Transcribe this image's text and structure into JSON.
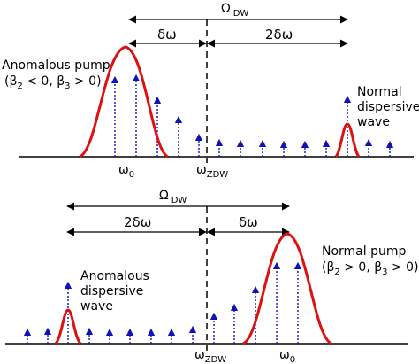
{
  "colors": {
    "spectrum": "#dd1111",
    "comb": "#1111bb",
    "axis": "#000000"
  },
  "top_panel": {
    "omega_dw": {
      "symbol": "Ω",
      "sub": "DW"
    },
    "left_gap": "δω",
    "right_gap": "2δω",
    "pump_label": [
      "Anomalous pump",
      "(β",
      "2",
      " < 0, β",
      "3",
      " > 0)"
    ],
    "wave_label": [
      "Normal",
      "dispersive",
      "wave"
    ],
    "tick_pump": {
      "symbol": "ω",
      "sub": "0"
    },
    "tick_zdw": {
      "symbol": "ω",
      "sub": "ZDW"
    }
  },
  "bottom_panel": {
    "omega_dw": {
      "symbol": "Ω",
      "sub": "DW"
    },
    "left_gap": "2δω",
    "right_gap": "δω",
    "pump_label": [
      "Normal pump",
      "(β",
      "2",
      " > 0, β",
      "3",
      " > 0)"
    ],
    "wave_label": [
      "Anomalous",
      "dispersive",
      "wave"
    ],
    "tick_zdw": {
      "symbol": "ω",
      "sub": "ZDW"
    },
    "tick_pump": {
      "symbol": "ω",
      "sub": "0"
    }
  }
}
